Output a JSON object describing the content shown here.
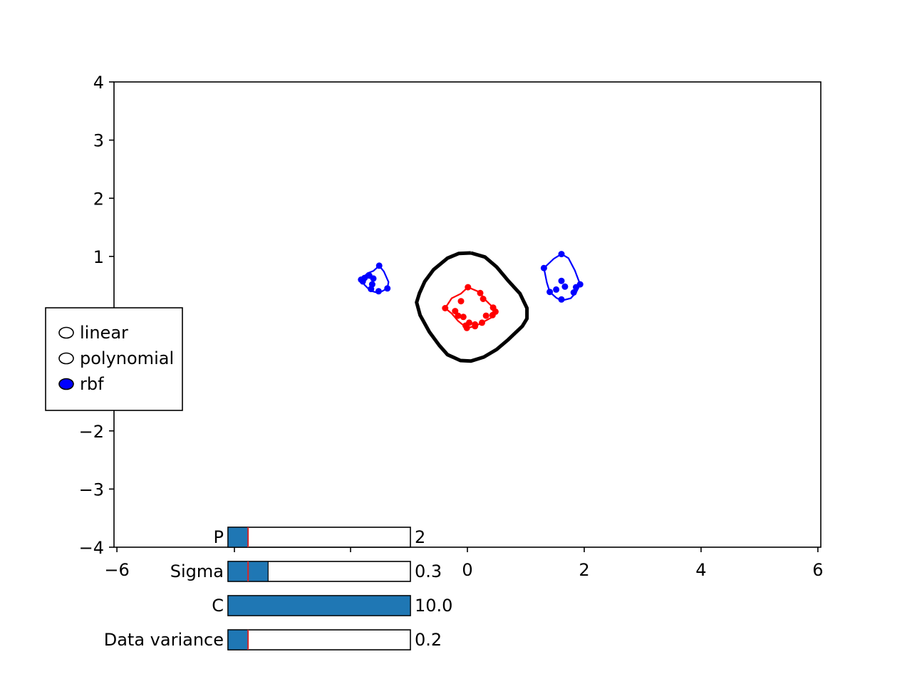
{
  "chart_data": {
    "type": "scatter",
    "title": "",
    "xlabel": "",
    "ylabel": "",
    "xlim": [
      -6.05,
      6.05
    ],
    "ylim": [
      -4,
      4
    ],
    "grid": false,
    "xticks": [
      {
        "value": -6,
        "label": "−6"
      },
      {
        "value": 0,
        "label": "0"
      },
      {
        "value": 2,
        "label": "2"
      },
      {
        "value": 4,
        "label": "4"
      },
      {
        "value": 6,
        "label": "6"
      }
    ],
    "yticks": [
      {
        "value": -4,
        "label": "−4"
      },
      {
        "value": -3,
        "label": "−3"
      },
      {
        "value": -2,
        "label": "−2"
      },
      {
        "value": 1,
        "label": "1"
      },
      {
        "value": 2,
        "label": "2"
      },
      {
        "value": 3,
        "label": "3"
      },
      {
        "value": 4,
        "label": "4"
      }
    ],
    "series": [
      {
        "color": "#ff0000",
        "points": [
          [
            0.01,
            0.47
          ],
          [
            0.22,
            0.37
          ],
          [
            -0.11,
            0.23
          ],
          [
            0.27,
            0.27
          ],
          [
            -0.21,
            0.06
          ],
          [
            -0.38,
            0.11
          ],
          [
            0.44,
            0.12
          ],
          [
            -0.07,
            -0.04
          ],
          [
            0.48,
            0.05
          ],
          [
            -0.16,
            -0.02
          ],
          [
            0.32,
            -0.02
          ],
          [
            0.43,
            -0.01
          ],
          [
            -0.03,
            -0.19
          ],
          [
            0.03,
            -0.14
          ],
          [
            0.25,
            -0.14
          ],
          [
            0.13,
            -0.17
          ],
          [
            -0.01,
            -0.23
          ],
          [
            0.13,
            -0.2
          ]
        ],
        "boundary": [
          [
            0.01,
            0.47
          ],
          [
            0.2,
            0.39
          ],
          [
            0.32,
            0.24
          ],
          [
            0.44,
            0.12
          ],
          [
            0.48,
            0.05
          ],
          [
            0.43,
            -0.04
          ],
          [
            0.25,
            -0.14
          ],
          [
            0.13,
            -0.2
          ],
          [
            -0.01,
            -0.23
          ],
          [
            -0.16,
            -0.11
          ],
          [
            -0.27,
            0.02
          ],
          [
            -0.38,
            0.11
          ],
          [
            -0.27,
            0.28
          ],
          [
            -0.11,
            0.36
          ],
          [
            0.01,
            0.47
          ]
        ]
      },
      {
        "color": "#0000ff",
        "points": [
          [
            -1.51,
            0.84
          ],
          [
            -1.68,
            0.67
          ],
          [
            -1.76,
            0.63
          ],
          [
            -1.82,
            0.6
          ],
          [
            -1.61,
            0.62
          ],
          [
            -1.79,
            0.57
          ],
          [
            -1.63,
            0.52
          ],
          [
            -1.37,
            0.45
          ],
          [
            -1.65,
            0.44
          ],
          [
            -1.52,
            0.4
          ]
        ],
        "boundary": [
          [
            -1.51,
            0.84
          ],
          [
            -1.43,
            0.74
          ],
          [
            -1.35,
            0.56
          ],
          [
            -1.37,
            0.45
          ],
          [
            -1.52,
            0.37
          ],
          [
            -1.66,
            0.41
          ],
          [
            -1.76,
            0.51
          ],
          [
            -1.82,
            0.6
          ],
          [
            -1.71,
            0.71
          ],
          [
            -1.61,
            0.75
          ],
          [
            -1.51,
            0.84
          ]
        ]
      },
      {
        "color": "#0000ff",
        "points": [
          [
            1.61,
            1.04
          ],
          [
            1.31,
            0.8
          ],
          [
            1.61,
            0.58
          ],
          [
            1.93,
            0.52
          ],
          [
            1.67,
            0.48
          ],
          [
            1.86,
            0.47
          ],
          [
            1.52,
            0.43
          ],
          [
            1.41,
            0.39
          ],
          [
            1.82,
            0.38
          ],
          [
            1.61,
            0.26
          ]
        ],
        "boundary": [
          [
            1.61,
            1.04
          ],
          [
            1.48,
            0.96
          ],
          [
            1.31,
            0.8
          ],
          [
            1.36,
            0.55
          ],
          [
            1.41,
            0.39
          ],
          [
            1.52,
            0.29
          ],
          [
            1.61,
            0.24
          ],
          [
            1.77,
            0.28
          ],
          [
            1.86,
            0.38
          ],
          [
            1.93,
            0.52
          ],
          [
            1.84,
            0.76
          ],
          [
            1.73,
            0.97
          ],
          [
            1.61,
            1.04
          ]
        ]
      }
    ],
    "decision_boundary": {
      "color": "#000000",
      "points": [
        [
          0.06,
          1.06
        ],
        [
          0.3,
          0.99
        ],
        [
          0.5,
          0.82
        ],
        [
          0.7,
          0.58
        ],
        [
          0.9,
          0.36
        ],
        [
          1.02,
          0.11
        ],
        [
          1.02,
          -0.07
        ],
        [
          0.94,
          -0.2
        ],
        [
          0.7,
          -0.43
        ],
        [
          0.5,
          -0.6
        ],
        [
          0.28,
          -0.73
        ],
        [
          0.06,
          -0.8
        ],
        [
          -0.12,
          -0.79
        ],
        [
          -0.34,
          -0.69
        ],
        [
          -0.48,
          -0.53
        ],
        [
          -0.65,
          -0.3
        ],
        [
          -0.81,
          -0.01
        ],
        [
          -0.87,
          0.21
        ],
        [
          -0.82,
          0.37
        ],
        [
          -0.73,
          0.57
        ],
        [
          -0.58,
          0.77
        ],
        [
          -0.34,
          0.97
        ],
        [
          -0.15,
          1.05
        ],
        [
          0.06,
          1.06
        ]
      ]
    }
  },
  "controls": {
    "kernel_radio": {
      "options": [
        {
          "label": "linear",
          "selected": false
        },
        {
          "label": "polynomial",
          "selected": false
        },
        {
          "label": "rbf",
          "selected": true
        }
      ],
      "selected_fill": "#0000ff"
    },
    "sliders": {
      "fill_color": "#1f77b4",
      "init_marker_color": "#d62728",
      "items": [
        {
          "label": "P",
          "value_text": "2",
          "fraction": 0.11,
          "init_fraction": 0.11
        },
        {
          "label": "Sigma",
          "value_text": "0.3",
          "fraction": 0.22,
          "init_fraction": 0.11
        },
        {
          "label": "C",
          "value_text": "10.0",
          "fraction": 1.0,
          "init_fraction": 1.0
        },
        {
          "label": "Data variance",
          "value_text": "0.2",
          "fraction": 0.11,
          "init_fraction": 0.11
        }
      ]
    }
  }
}
